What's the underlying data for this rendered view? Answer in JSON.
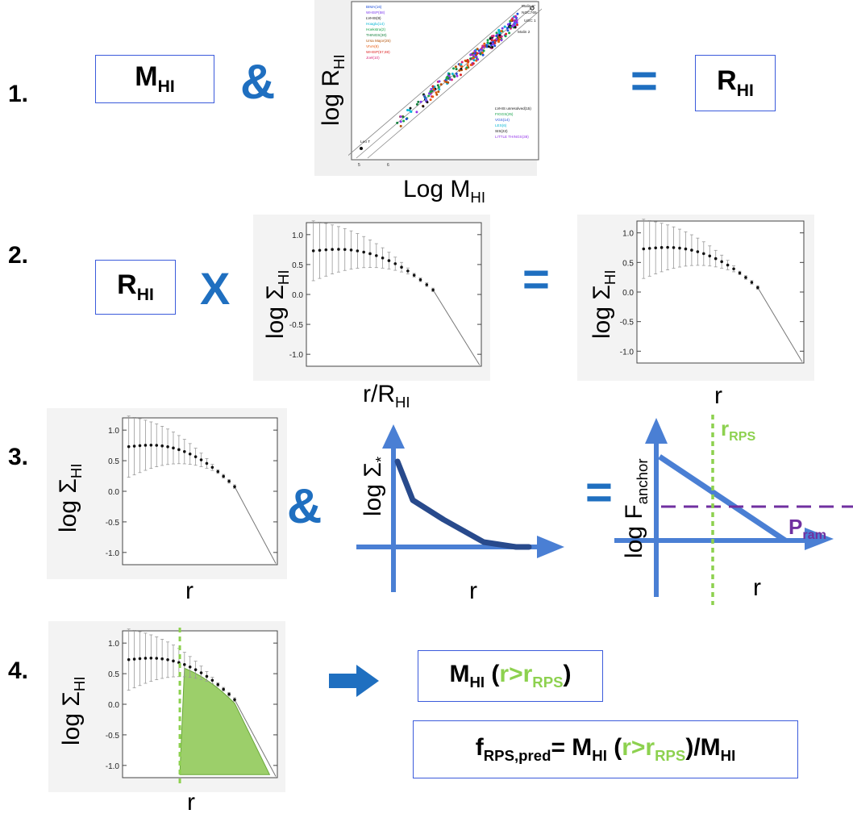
{
  "steps": {
    "s1": "1.",
    "s2": "2.",
    "s3": "3.",
    "s4": "4."
  },
  "row1": {
    "m_hi_main": "M",
    "m_hi_sub": "HI",
    "amp": "&",
    "y_label_main": "log R",
    "y_label_sub": "HI",
    "x_label_main": "Log M",
    "x_label_sub": "HI",
    "eq": "=",
    "r_hi_main": "R",
    "r_hi_sub": "HI"
  },
  "row2": {
    "r_hi_main": "R",
    "r_hi_sub": "HI",
    "times": "X",
    "y_label_main": "log Σ",
    "y_label_sub": "HI",
    "x_label_main": "r/R",
    "x_label_sub": "HI",
    "eq": "=",
    "y_label2_main": "log Σ",
    "y_label2_sub": "HI",
    "x_label2": "r"
  },
  "row3": {
    "y_label_main": "log Σ",
    "y_label_sub": "HI",
    "x_label": "r",
    "amp": "&",
    "star_y_main": "log Σ",
    "star_y_sub": "*",
    "star_x": "r",
    "eq": "=",
    "anchor_y_main": "log F",
    "anchor_y_sub": "anchor",
    "anchor_x": "r",
    "r_rps_main": "r",
    "r_rps_sub": "RPS",
    "p_ram_main": "P",
    "p_ram_sub": "ram"
  },
  "row4": {
    "y_label_main": "log Σ",
    "y_label_sub": "HI",
    "x_label": "r",
    "box1_m": "M",
    "box1_m_sub": "HI",
    "box1_open": " (",
    "box1_r": "r>r",
    "box1_r_sub": "RPS",
    "box1_close": ")",
    "box2_f": "f",
    "box2_f_sub": "RPS,pred",
    "box2_eq": "= M",
    "box2_m_sub": "HI",
    "box2_open": " (",
    "box2_r": "r>r",
    "box2_r_sub": "RPS",
    "box2_close": ")/M",
    "box2_end_sub": "HI"
  },
  "colors": {
    "blue_op": "#1f6fc0",
    "arrow_blue": "#4a7fd4",
    "green": "#8dd14f",
    "purple": "#7030a0",
    "box_border": "#3b5bdb"
  },
  "profile_ticks": [
    "1.0",
    "0.5",
    "0.0",
    "-0.5",
    "-1.0"
  ],
  "scatter_legend_top": [
    "BIMA(16)",
    "WHISP(58)",
    "LVHIS(9)",
    "Hoaglu(14)",
    "Hoekstra(2)",
    "THINGS(30)",
    "Ursa Major(25)",
    "VIVA(8)",
    "WHISP(57,69)",
    "Joel(10)"
  ],
  "scatter_legend_bottom": [
    "LVHIS unresolved(15)",
    "FIGGS(25)",
    "VGS(14)",
    "LES(6)",
    "SIS(22)",
    "LITTLE THINGS(38)"
  ],
  "scatter_annotations": [
    "Malin 1",
    "NGC765",
    "UGC 1",
    "Malin 2",
    "Leo T"
  ],
  "scatter_ticks_x": [
    "5",
    "6"
  ]
}
